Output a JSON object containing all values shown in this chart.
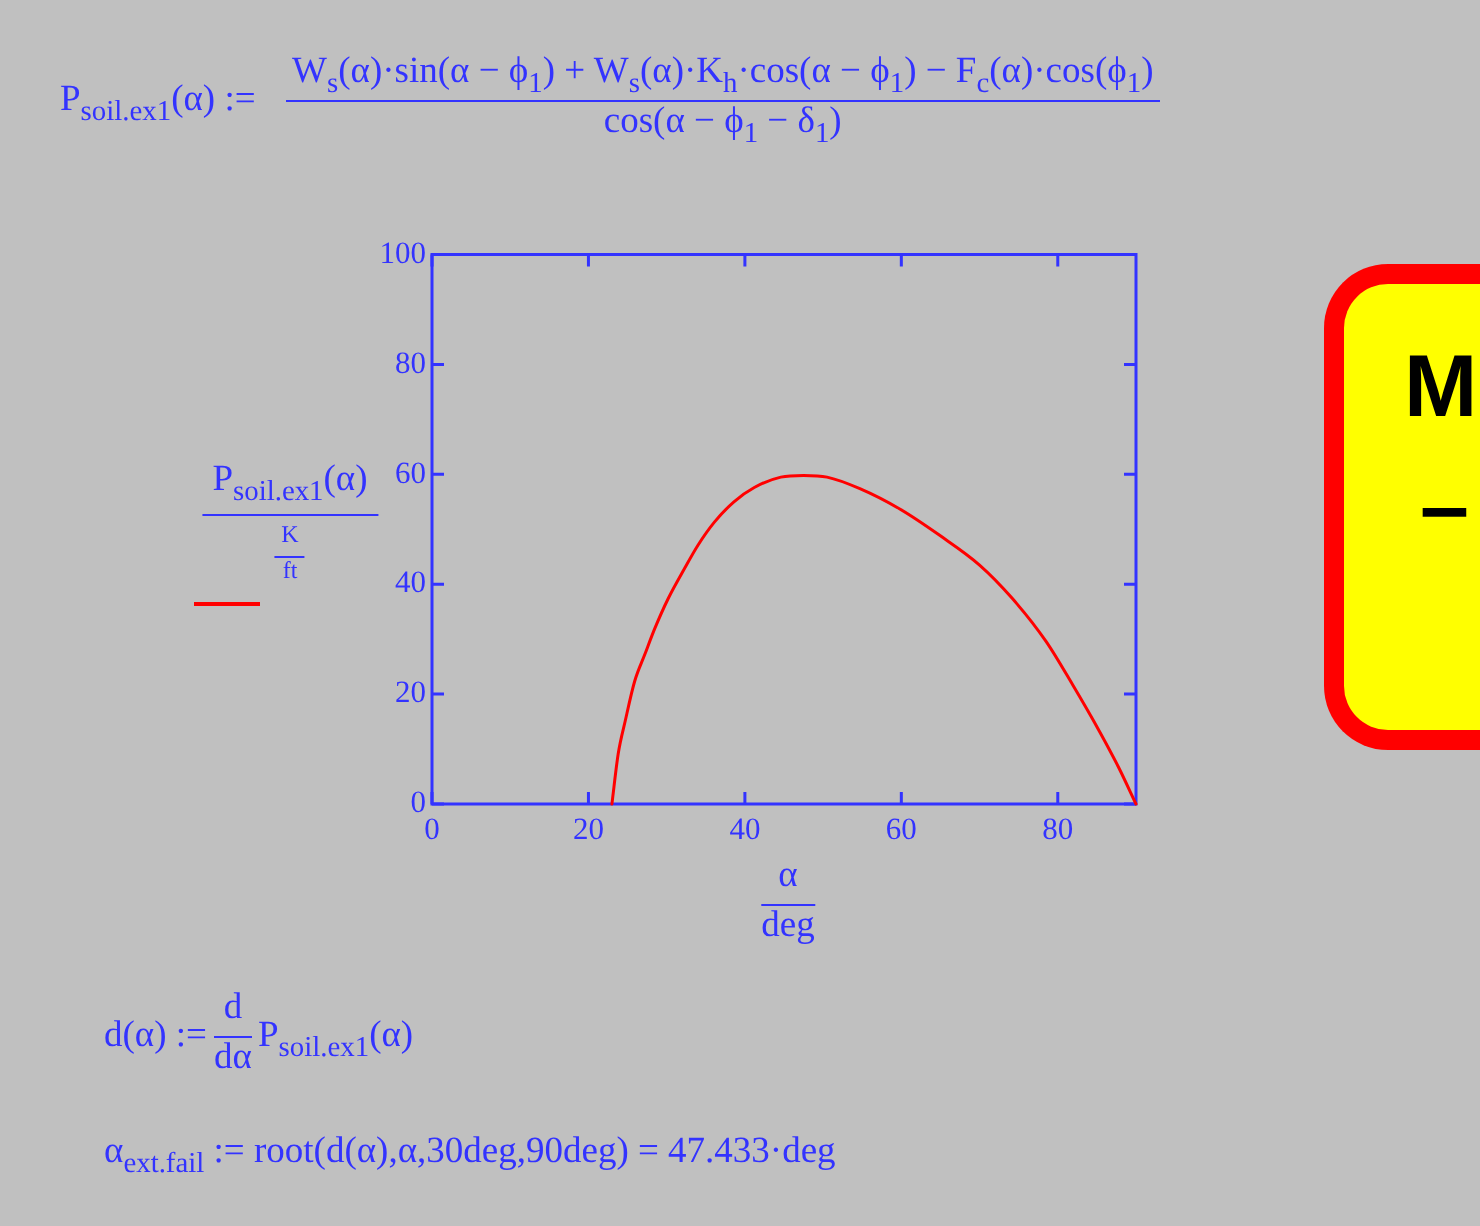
{
  "chart_data": {
    "type": "line",
    "xlabel": "α\ndeg",
    "ylabel": "P$_{soil.ex1}$(α)\nK\nft",
    "annotations": [
      "P$_{soil.ex1}$(α) :=",
      "W$_{s}$(α)·sin(α − ϕ$_{1}$) + W$_{s}$(α)·K$_{h}$·cos(α − ϕ$_{1}$) − F$_{c}$(α)·cos(ϕ$_{1}$)\ncos(α − ϕ$_{1}$ − δ$_{1}$)",
      "d(α) :=",
      "d\ndα",
      "P$_{soil.ex1}$(α)",
      "α$_{ext.fail}$ := root(d(α),α,30deg,90deg) = 47.433·deg",
      "M",
      "–"
    ],
    "x": [
      23,
      23.8,
      24.7,
      25.9,
      27.2,
      28.5,
      30.2,
      32.3,
      34,
      36.1,
      38.6,
      41.2,
      44.6,
      47.5,
      50.5,
      54.7,
      59.8,
      64.9,
      70,
      74.2,
      78.5,
      81.9,
      85.3,
      87.8,
      90
    ],
    "values": [
      0,
      9.1,
      15.1,
      22.3,
      27.2,
      32,
      37.4,
      42.9,
      47.1,
      51.3,
      55,
      57.6,
      59.5,
      59.8,
      59.5,
      57.4,
      53.7,
      48.9,
      43.5,
      37.4,
      29.6,
      21.7,
      13.3,
      6.6,
      0
    ],
    "color": "#ff0000",
    "xlim": [
      0,
      90
    ],
    "xticks": [
      0,
      20,
      40,
      60,
      80
    ],
    "ylim": [
      0,
      100
    ],
    "yticks": [
      0,
      20,
      40,
      60,
      80,
      100
    ],
    "marker": "none",
    "line_style": "solid"
  }
}
